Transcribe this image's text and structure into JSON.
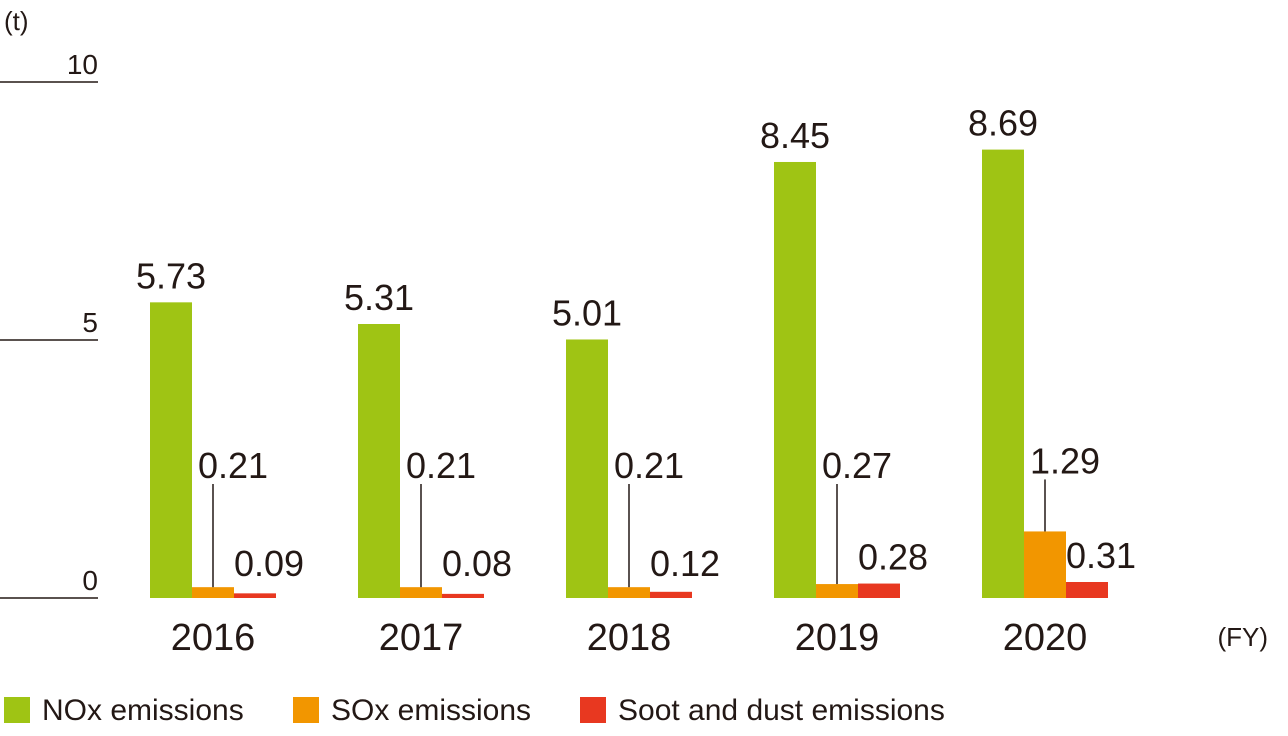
{
  "chart_data": {
    "type": "bar",
    "y_unit": "(t)",
    "x_unit": "(FY)",
    "categories": [
      "2016",
      "2017",
      "2018",
      "2019",
      "2020"
    ],
    "series": [
      {
        "name": "NOx emissions",
        "color": "#9fc414",
        "values": [
          5.73,
          5.31,
          5.01,
          8.45,
          8.69
        ],
        "labels": [
          "5.73",
          "5.31",
          "5.01",
          "8.45",
          "8.69"
        ]
      },
      {
        "name": "SOx emissions",
        "color": "#f29600",
        "values": [
          0.21,
          0.21,
          0.21,
          0.27,
          1.29
        ],
        "labels": [
          "0.21",
          "0.21",
          "0.21",
          "0.27",
          "1.29"
        ]
      },
      {
        "name": "Soot and dust emissions",
        "color": "#e83820",
        "values": [
          0.09,
          0.08,
          0.12,
          0.28,
          0.31
        ],
        "labels": [
          "0.09",
          "0.08",
          "0.12",
          "0.28",
          "0.31"
        ]
      }
    ],
    "yticks": [
      "0",
      "5",
      "10"
    ],
    "ylim": [
      0,
      10
    ],
    "grid": false,
    "legend_position": "bottom-left"
  }
}
